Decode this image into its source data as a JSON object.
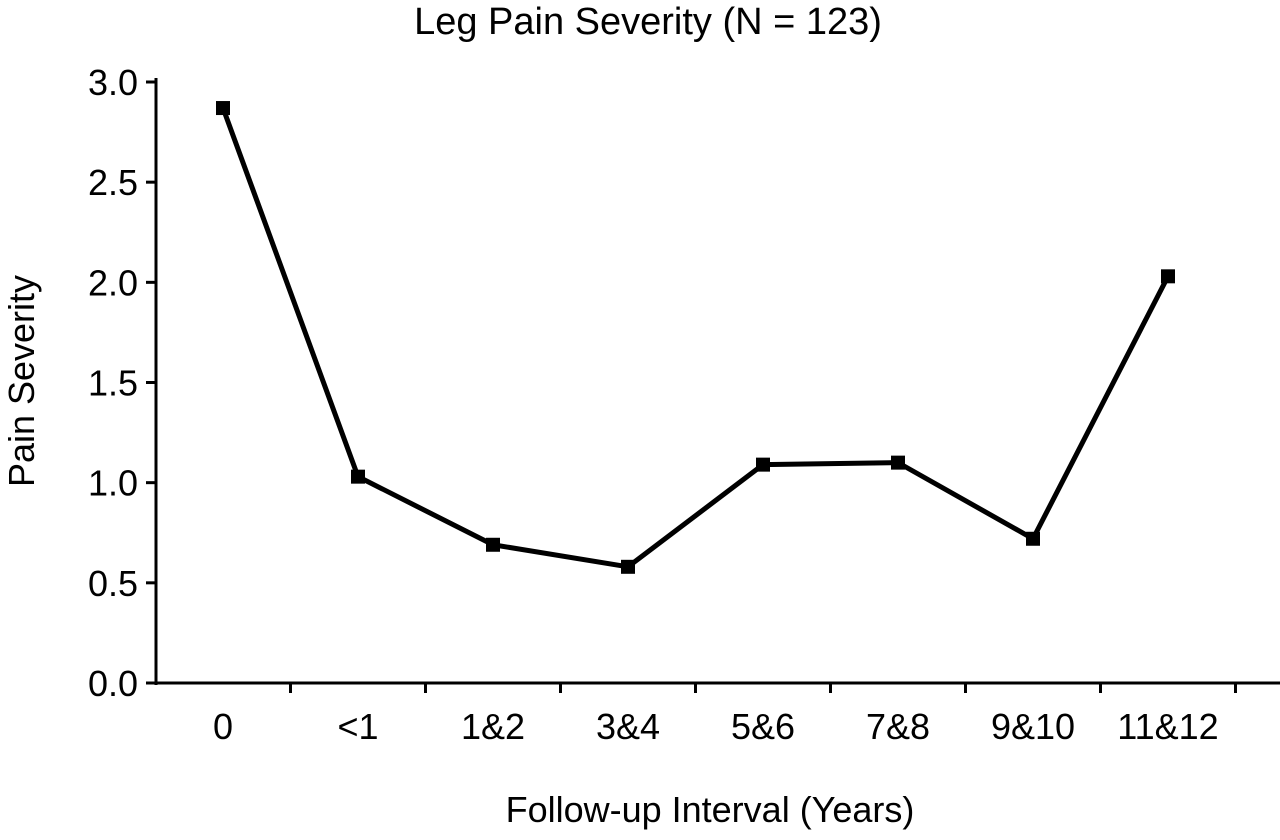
{
  "chart_data": {
    "type": "line",
    "title": "Leg Pain Severity (N = 123)",
    "xlabel": "Follow-up Interval (Years)",
    "ylabel": "Pain Severity",
    "categories": [
      "0",
      "<1",
      "1&2",
      "3&4",
      "5&6",
      "7&8",
      "9&10",
      "11&12"
    ],
    "series": [
      {
        "values": [
          2.87,
          1.03,
          0.69,
          0.58,
          1.09,
          1.1,
          0.72,
          2.03
        ]
      }
    ],
    "ylim": [
      0,
      3
    ],
    "yticks": [
      0,
      0.5,
      1,
      1.5,
      2,
      2.5,
      3
    ],
    "ytick_labels": [
      "0.0",
      "0.5",
      "1.0",
      "1.5",
      "2.0",
      "2.5",
      "3.0"
    ],
    "grid": false,
    "legend": "none",
    "colors": {
      "line": "#000000",
      "axis": "#000000",
      "background": "#ffffff"
    }
  }
}
